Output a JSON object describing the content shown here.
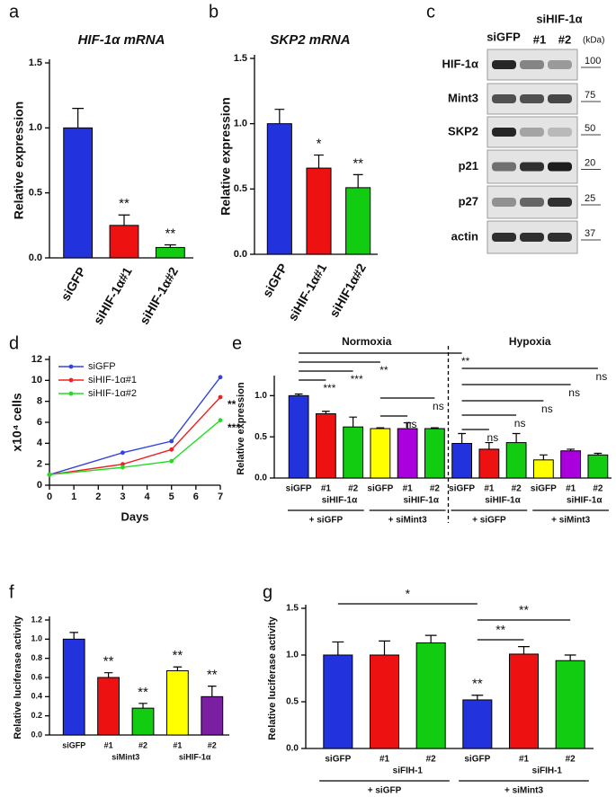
{
  "chart_data": [
    {
      "type": "bar",
      "panel": "a",
      "title": "HIF-1α mRNA",
      "y_label": "Relative expression",
      "categories": [
        "siGFP",
        "siHIF-1α#1",
        "siHIF-1α#2"
      ],
      "values": [
        1.0,
        0.25,
        0.08
      ],
      "errors": [
        0.15,
        0.08,
        0.02
      ],
      "colors": [
        "#2233dd",
        "#ee1111",
        "#11cc11"
      ],
      "significance": [
        null,
        "**",
        "**"
      ],
      "ylim": [
        0,
        1.5
      ],
      "yticks": [
        {
          "value": 0,
          "label": "0.0"
        },
        {
          "value": 0.5,
          "label": "0.5"
        },
        {
          "value": 1,
          "label": "1.0"
        },
        {
          "value": 1.5,
          "label": "1.5"
        }
      ]
    },
    {
      "type": "bar",
      "panel": "b",
      "title": "SKP2 mRNA",
      "y_label": "Relative expression",
      "categories": [
        "siGFP",
        "siHIF-1α#1",
        "siHIF1α#2"
      ],
      "values": [
        1.0,
        0.66,
        0.51
      ],
      "errors": [
        0.11,
        0.1,
        0.1
      ],
      "colors": [
        "#2233dd",
        "#ee1111",
        "#11cc11"
      ],
      "significance": [
        null,
        "*",
        "**"
      ],
      "ylim": [
        0,
        1.5
      ],
      "yticks": [
        {
          "value": 0,
          "label": "0.0"
        },
        {
          "value": 0.5,
          "label": "0.5"
        },
        {
          "value": 1,
          "label": "1.0"
        },
        {
          "value": 1.5,
          "label": "1.5"
        }
      ]
    },
    {
      "type": "line",
      "panel": "d",
      "x_label": "Days",
      "y_label": "x10⁴ cells",
      "x": [
        0,
        3,
        5,
        7
      ],
      "series": [
        {
          "name": "siGFP",
          "color": "#3344dd",
          "values": [
            1.0,
            3.1,
            4.2,
            10.3
          ],
          "annotation": null
        },
        {
          "name": "siHIF-1α#1",
          "color": "#ee2222",
          "values": [
            1.0,
            2.0,
            3.4,
            8.4
          ],
          "annotation": "**"
        },
        {
          "name": "siHIF-1α#2",
          "color": "#22dd22",
          "values": [
            1.0,
            1.7,
            2.3,
            6.2
          ],
          "annotation": "***"
        }
      ],
      "xlim": [
        0,
        7
      ],
      "xticks": [
        0,
        1,
        2,
        3,
        4,
        5,
        6,
        7
      ],
      "ylim": [
        0,
        12
      ],
      "yticks": [
        0,
        2,
        4,
        6,
        8,
        10,
        12
      ]
    },
    {
      "type": "bar",
      "panel": "e",
      "y_label": "Relative expression",
      "categories": [
        "siGFP",
        "#1",
        "#2",
        "siGFP",
        "#1",
        "#2",
        "siGFP",
        "#1",
        "#2",
        "siGFP",
        "#1",
        "#2"
      ],
      "values": [
        1.0,
        0.78,
        0.62,
        0.6,
        0.6,
        0.6,
        0.42,
        0.35,
        0.43,
        0.22,
        0.33,
        0.28
      ],
      "errors": [
        0.02,
        0.03,
        0.12,
        0.01,
        0.07,
        0.01,
        0.12,
        0.08,
        0.11,
        0.06,
        0.02,
        0.02
      ],
      "colors": [
        "#2233dd",
        "#ee1111",
        "#11cc11",
        "#ffff00",
        "#aa00dd",
        "#11cc11",
        "#2233dd",
        "#ee1111",
        "#11cc11",
        "#ffff00",
        "#aa00dd",
        "#11cc11"
      ],
      "sublabels": [
        "siHIF-1α",
        "siHIF-1α",
        "siHIF-1α",
        "siHIF-1α"
      ],
      "treatments": [
        "+ siGFP",
        "+ siMint3",
        "+ siGFP",
        "+ siMint3"
      ],
      "conditions": [
        "Normoxia",
        "Hypoxia"
      ],
      "comparisons": [
        "**",
        "**",
        "***",
        "***",
        "ns",
        "ns",
        "ns",
        "ns",
        "ns",
        "ns",
        "ns"
      ],
      "ylim": [
        0,
        1.2
      ],
      "yticks": [
        {
          "value": 0,
          "label": "0.0"
        },
        {
          "value": 0.5,
          "label": "0.5"
        },
        {
          "value": 1,
          "label": "1.0"
        }
      ]
    },
    {
      "type": "bar",
      "panel": "f",
      "y_label": "Relative luciferase activity",
      "categories": [
        "siGFP",
        "#1",
        "#2",
        "#1",
        "#2"
      ],
      "values": [
        1.0,
        0.6,
        0.28,
        0.67,
        0.4
      ],
      "errors": [
        0.07,
        0.05,
        0.05,
        0.04,
        0.11
      ],
      "colors": [
        "#2233dd",
        "#ee1111",
        "#11cc11",
        "#ffff00",
        "#7b1fa2"
      ],
      "significance": [
        null,
        "**",
        "**",
        "**",
        "**"
      ],
      "sublabels": [
        "siMint3",
        "siHIF-1α"
      ],
      "ylim": [
        0,
        1.2
      ],
      "yticks": [
        {
          "value": 0,
          "label": "0.0"
        },
        {
          "value": 0.2,
          "label": "0.2"
        },
        {
          "value": 0.4,
          "label": "0.4"
        },
        {
          "value": 0.6,
          "label": "0.6"
        },
        {
          "value": 0.8,
          "label": "0.8"
        },
        {
          "value": 1,
          "label": "1.0"
        },
        {
          "value": 1.2,
          "label": "1.2"
        }
      ]
    },
    {
      "type": "bar",
      "panel": "g",
      "y_label": "Relative luciferase activity",
      "categories": [
        "siGFP",
        "#1",
        "#2",
        "siGFP",
        "#1",
        "#2"
      ],
      "values": [
        1.0,
        1.0,
        1.13,
        0.52,
        1.01,
        0.94
      ],
      "errors": [
        0.14,
        0.15,
        0.08,
        0.05,
        0.08,
        0.06
      ],
      "colors": [
        "#2233dd",
        "#ee1111",
        "#11cc11",
        "#2233dd",
        "#ee1111",
        "#11cc11"
      ],
      "significance": [
        null,
        null,
        null,
        "**",
        null,
        null
      ],
      "sublabels": [
        "siFIH-1",
        "siFIH-1"
      ],
      "treatments": [
        "+ siGFP",
        "+ siMint3"
      ],
      "comparisons": [
        "*",
        "**",
        "**"
      ],
      "ylim": [
        0,
        1.5
      ],
      "yticks": [
        {
          "value": 0,
          "label": "0.0"
        },
        {
          "value": 0.5,
          "label": "0.5"
        },
        {
          "value": 1,
          "label": "1.0"
        },
        {
          "value": 1.5,
          "label": "1.5"
        }
      ]
    }
  ],
  "blot": {
    "panel": "c",
    "lanes": [
      "siGFP",
      "siHIF-1α",
      "#1",
      "#2"
    ],
    "unit": "(kDa)",
    "rows": [
      {
        "label": "HIF-1α",
        "kda": "100"
      },
      {
        "label": "Mint3",
        "kda": "75"
      },
      {
        "label": "SKP2",
        "kda": "50"
      },
      {
        "label": "p21",
        "kda": "20"
      },
      {
        "label": "p27",
        "kda": "25"
      },
      {
        "label": "actin",
        "kda": "37"
      }
    ]
  }
}
